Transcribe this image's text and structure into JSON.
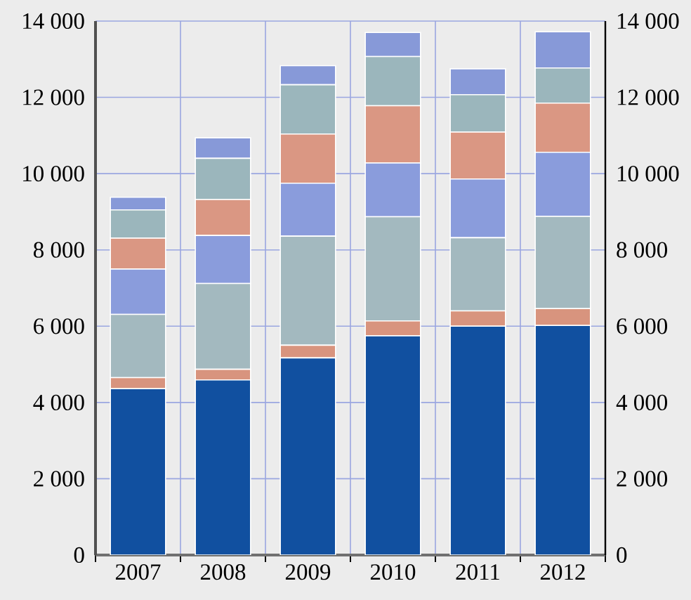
{
  "chart_data": {
    "type": "bar",
    "stacked": true,
    "categories": [
      "2007",
      "2008",
      "2009",
      "2010",
      "2011",
      "2012"
    ],
    "series": [
      {
        "color": "#1150a0",
        "values": [
          4360,
          4590,
          5170,
          5750,
          6000,
          6020
        ]
      },
      {
        "color": "#d8947e",
        "values": [
          290,
          280,
          330,
          390,
          400,
          440
        ]
      },
      {
        "color": "#a3b9bf",
        "values": [
          1660,
          2250,
          2860,
          2730,
          1920,
          2420
        ]
      },
      {
        "color": "#8a9cdc",
        "values": [
          1190,
          1260,
          1390,
          1410,
          1540,
          1680
        ]
      },
      {
        "color": "#da9783",
        "values": [
          810,
          940,
          1290,
          1500,
          1230,
          1290
        ]
      },
      {
        "color": "#9bb6bc",
        "values": [
          740,
          1080,
          1290,
          1290,
          980,
          920
        ]
      },
      {
        "color": "#8799d8",
        "values": [
          330,
          540,
          500,
          630,
          680,
          950
        ]
      }
    ],
    "ylim": [
      0,
      14000
    ],
    "yticks": [
      0,
      {
        "value": 2000,
        "label": "2 000"
      },
      {
        "value": 4000,
        "label": "4 000"
      },
      {
        "value": 6000,
        "label": "6 000"
      },
      {
        "value": 8000,
        "label": "8 000"
      },
      {
        "value": 10000,
        "label": "10 000"
      },
      {
        "value": 12000,
        "label": "12 000"
      },
      {
        "value": 14000,
        "label": "14 000"
      }
    ],
    "y2lim": [
      0,
      14000
    ],
    "y2ticks": [
      0,
      {
        "value": 2000,
        "label": "2 000"
      },
      {
        "value": 4000,
        "label": "4 000"
      },
      {
        "value": 6000,
        "label": "6 000"
      },
      {
        "value": 8000,
        "label": "8 000"
      },
      {
        "value": 10000,
        "label": "10 000"
      },
      {
        "value": 12000,
        "label": "12 000"
      },
      {
        "value": 14000,
        "label": "14 000"
      }
    ],
    "grid": true
  }
}
